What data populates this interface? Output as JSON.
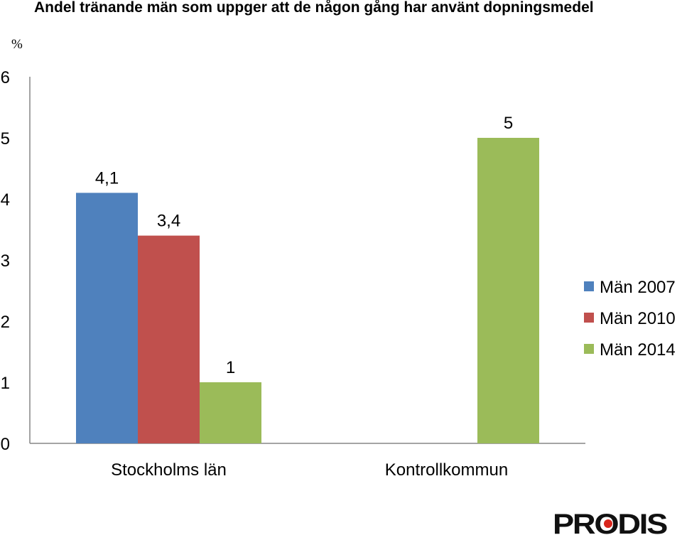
{
  "chart_data": {
    "type": "bar",
    "title": "Andel tränande män som uppger att de någon gång har använt dopningsmedel",
    "ylabel": "%",
    "xlabel": "",
    "categories": [
      "Stockholms län",
      "Kontrollkommun"
    ],
    "series": [
      {
        "name": "Män 2007",
        "color": "#4F81BD",
        "values": [
          4.1,
          null
        ],
        "labels": [
          "4,1",
          ""
        ]
      },
      {
        "name": "Män 2010",
        "color": "#C0504D",
        "values": [
          3.4,
          null
        ],
        "labels": [
          "3,4",
          ""
        ]
      },
      {
        "name": "Män 2014",
        "color": "#9BBB59",
        "values": [
          1,
          5
        ],
        "labels": [
          "1",
          "5"
        ]
      }
    ],
    "ylim": [
      0,
      6
    ],
    "yticks": [
      "0",
      "1",
      "2",
      "3",
      "4",
      "5",
      "6"
    ],
    "grid": false,
    "legend": "right"
  },
  "logo": {
    "text": "PRODIS",
    "color": "#111111",
    "accent": "#D9261C"
  }
}
